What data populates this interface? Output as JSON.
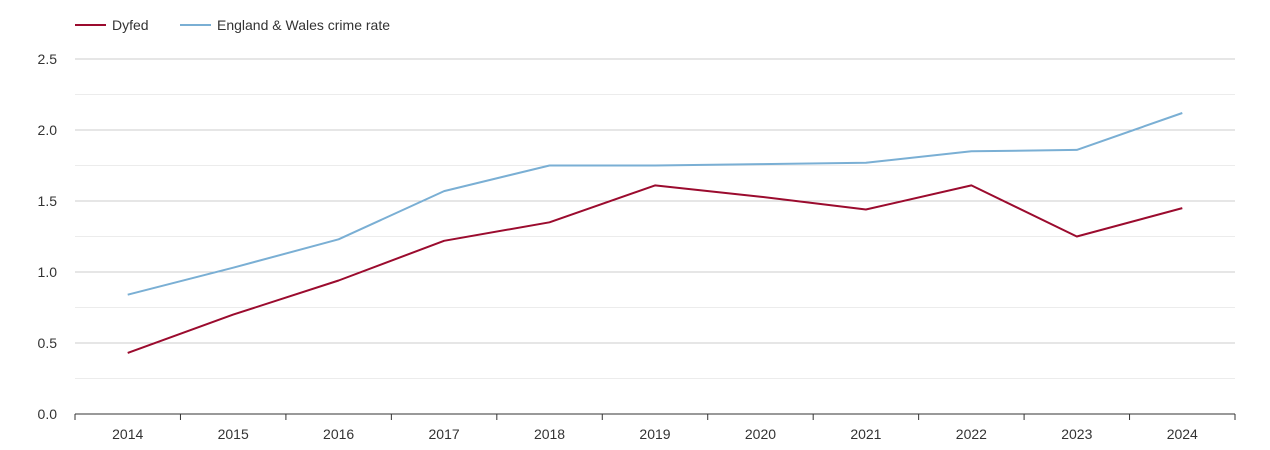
{
  "chart_data": {
    "type": "line",
    "x": [
      "2014",
      "2015",
      "2016",
      "2017",
      "2018",
      "2019",
      "2020",
      "2021",
      "2022",
      "2023",
      "2024"
    ],
    "ylim": [
      0,
      2.5
    ],
    "yticks": [
      "0.0",
      "0.5",
      "1.0",
      "1.5",
      "2.0",
      "2.5"
    ],
    "grid": true,
    "legend_position": "top-left",
    "series": [
      {
        "name": "Dyfed",
        "color": "#9b0b2e",
        "values": [
          0.43,
          0.7,
          0.94,
          1.22,
          1.35,
          1.61,
          1.53,
          1.44,
          1.61,
          1.25,
          1.45
        ]
      },
      {
        "name": "England & Wales crime rate",
        "color": "#7aafd4",
        "values": [
          0.84,
          1.03,
          1.23,
          1.57,
          1.75,
          1.75,
          1.76,
          1.77,
          1.85,
          1.86,
          2.12
        ]
      }
    ]
  }
}
